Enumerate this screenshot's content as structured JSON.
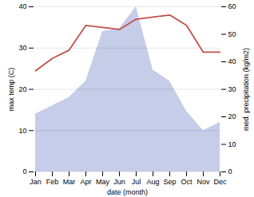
{
  "chart_data": {
    "type": "line",
    "xlabel": "date (month)",
    "ylabel": "max temp (C)",
    "y2label": "med. precipitation (kg/m2)",
    "categories": [
      "Jan",
      "Feb",
      "Mar",
      "Apr",
      "May",
      "Jun",
      "Jul",
      "Aug",
      "Sep",
      "Oct",
      "Nov",
      "Dec"
    ],
    "series": [
      {
        "type": "line",
        "color": "#c0524a",
        "values": [
          24.5,
          27.5,
          29.5,
          35.5,
          35.0,
          34.5,
          37.0,
          37.5,
          38.0,
          35.5,
          29.0,
          29.0
        ]
      },
      {
        "type": "area",
        "axis": "y2",
        "color": "#c5cde8",
        "values": [
          21,
          24,
          27,
          33,
          51,
          52,
          60,
          37,
          33,
          22,
          15,
          18
        ]
      }
    ],
    "ylim": [
      0,
      40
    ],
    "yticks": [
      0,
      10,
      20,
      30,
      40
    ],
    "y2lim": [
      0,
      60
    ],
    "y2ticks": [
      0,
      10,
      20,
      30,
      40,
      50,
      60
    ],
    "grid": true
  }
}
